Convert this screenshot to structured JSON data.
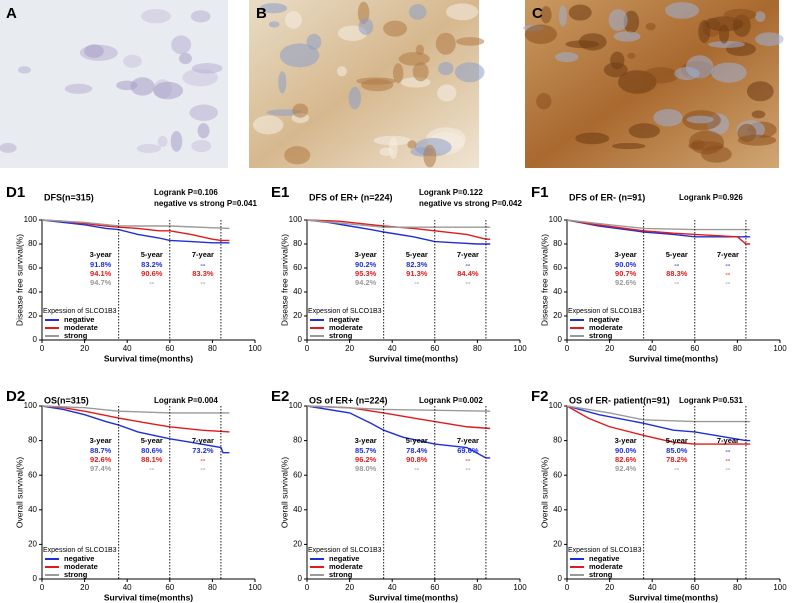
{
  "images": [
    {
      "label": "A"
    },
    {
      "label": "B"
    },
    {
      "label": "C"
    }
  ],
  "chart_data": [
    {
      "type": "line",
      "panel": "D1",
      "title": "DFS(n=315)",
      "logrank": "Logrank P=0.106",
      "logrank_note": "negative vs strong  P=0.041",
      "x_label": "Survival time(months)",
      "y_label": "Disease free survival(%)",
      "xlim": [
        0,
        100
      ],
      "xticks": [
        0,
        20,
        40,
        60,
        80,
        100
      ],
      "ylim": [
        0,
        100
      ],
      "yticks": [
        0,
        20,
        40,
        60,
        80,
        100
      ],
      "legend_title": "Expession of SLCO1B3",
      "series": [
        {
          "name": "negative",
          "color": "#1f2fd8",
          "x": [
            0,
            10,
            20,
            30,
            36,
            45,
            55,
            60,
            70,
            80,
            88
          ],
          "values": [
            100,
            98,
            96,
            93,
            92,
            88,
            85,
            83,
            82,
            81,
            81
          ]
        },
        {
          "name": "moderate",
          "color": "#e41a1a",
          "x": [
            0,
            10,
            20,
            30,
            36,
            45,
            55,
            60,
            70,
            80,
            84,
            88
          ],
          "values": [
            100,
            99,
            97,
            95,
            94,
            93,
            91,
            91,
            88,
            84,
            83,
            83
          ]
        },
        {
          "name": "strong",
          "color": "#9a9a9a",
          "x": [
            0,
            20,
            36,
            60,
            88
          ],
          "values": [
            100,
            98,
            95,
            95,
            93
          ]
        }
      ],
      "annotations": [
        {
          "label": "3-year",
          "x": 36,
          "rates": [
            "91.8%",
            "94.1%",
            "94.7%"
          ]
        },
        {
          "label": "5-year",
          "x": 60,
          "rates": [
            "83.2%",
            "90.6%",
            "--"
          ]
        },
        {
          "label": "7-year",
          "x": 84,
          "rates": [
            "--",
            "83.3%",
            "--"
          ]
        }
      ]
    },
    {
      "type": "line",
      "panel": "E1",
      "title": "DFS of ER+ (n=224)",
      "logrank": "Logrank P=0.122",
      "logrank_note": "negative vs strong  P=0.042",
      "x_label": "Survival time(months)",
      "y_label": "Disease free survival(%)",
      "xlim": [
        0,
        100
      ],
      "xticks": [
        0,
        20,
        40,
        60,
        80,
        100
      ],
      "ylim": [
        0,
        100
      ],
      "yticks": [
        0,
        20,
        40,
        60,
        80,
        100
      ],
      "legend_title": "Expession of SLCO1B3",
      "series": [
        {
          "name": "negative",
          "color": "#1f2fd8",
          "x": [
            0,
            10,
            20,
            30,
            36,
            50,
            60,
            70,
            80,
            86
          ],
          "values": [
            100,
            98,
            95,
            92,
            90,
            86,
            82,
            81,
            80,
            80
          ]
        },
        {
          "name": "moderate",
          "color": "#e41a1a",
          "x": [
            0,
            15,
            36,
            50,
            60,
            75,
            84,
            86
          ],
          "values": [
            100,
            99,
            95,
            93,
            91,
            88,
            84,
            84
          ]
        },
        {
          "name": "strong",
          "color": "#9a9a9a",
          "x": [
            0,
            36,
            60,
            86
          ],
          "values": [
            100,
            94,
            94,
            94
          ]
        }
      ],
      "annotations": [
        {
          "label": "3-year",
          "x": 36,
          "rates": [
            "90.2%",
            "95.3%",
            "94.2%"
          ]
        },
        {
          "label": "5-year",
          "x": 60,
          "rates": [
            "82.3%",
            "91.3%",
            "--"
          ]
        },
        {
          "label": "7-year",
          "x": 84,
          "rates": [
            "--",
            "84.4%",
            "--"
          ]
        }
      ]
    },
    {
      "type": "line",
      "panel": "F1",
      "title": "DFS of ER- (n=91)",
      "logrank": "Logrank P=0.926",
      "x_label": "Survival time(months)",
      "y_label": "Disease free survival(%)",
      "xlim": [
        0,
        100
      ],
      "xticks": [
        0,
        20,
        40,
        60,
        80,
        100
      ],
      "ylim": [
        0,
        100
      ],
      "yticks": [
        0,
        20,
        40,
        60,
        80,
        100
      ],
      "legend_title": "Expession of SLCO1B3",
      "series": [
        {
          "name": "negative",
          "color": "#1f2fd8",
          "x": [
            0,
            15,
            36,
            50,
            60,
            86
          ],
          "values": [
            100,
            95,
            90,
            88,
            86,
            86
          ]
        },
        {
          "name": "moderate",
          "color": "#e41a1a",
          "x": [
            0,
            10,
            36,
            50,
            60,
            80,
            84,
            86
          ],
          "values": [
            100,
            97,
            91,
            89,
            88,
            86,
            80,
            80
          ]
        },
        {
          "name": "strong",
          "color": "#9a9a9a",
          "x": [
            0,
            20,
            36,
            60,
            86
          ],
          "values": [
            100,
            96,
            93,
            92,
            92
          ]
        }
      ],
      "annotations": [
        {
          "label": "3-year",
          "x": 36,
          "rates": [
            "90.0%",
            "90.7%",
            "92.6%"
          ]
        },
        {
          "label": "5-year",
          "x": 60,
          "rates": [
            "--",
            "88.3%",
            "--"
          ]
        },
        {
          "label": "7-year",
          "x": 84,
          "rates": [
            "--",
            "--",
            "--"
          ]
        }
      ]
    },
    {
      "type": "line",
      "panel": "D2",
      "title": "OS(n=315)",
      "logrank": "Logrank P=0.004",
      "x_label": "Survival time(months)",
      "y_label": "Overall survival(%)",
      "xlim": [
        0,
        100
      ],
      "xticks": [
        0,
        20,
        40,
        60,
        80,
        100
      ],
      "ylim": [
        0,
        100
      ],
      "yticks": [
        0,
        20,
        40,
        60,
        80,
        100
      ],
      "legend_title": "Expession of SLCO1B3",
      "series": [
        {
          "name": "negative",
          "color": "#1f2fd8",
          "x": [
            0,
            10,
            20,
            30,
            36,
            45,
            60,
            70,
            84,
            85,
            88
          ],
          "values": [
            100,
            98,
            95,
            91,
            89,
            85,
            81,
            79,
            76,
            73,
            73
          ]
        },
        {
          "name": "moderate",
          "color": "#e41a1a",
          "x": [
            0,
            10,
            20,
            36,
            50,
            60,
            75,
            88
          ],
          "values": [
            100,
            99,
            97,
            93,
            90,
            88,
            86,
            85
          ]
        },
        {
          "name": "strong",
          "color": "#9a9a9a",
          "x": [
            0,
            20,
            36,
            60,
            88
          ],
          "values": [
            100,
            99,
            97,
            96,
            96
          ]
        }
      ],
      "annotations": [
        {
          "label": "3-year",
          "x": 36,
          "rates": [
            "88.7%",
            "92.6%",
            "97.4%"
          ]
        },
        {
          "label": "5-year",
          "x": 60,
          "rates": [
            "80.6%",
            "88.1%",
            "--"
          ]
        },
        {
          "label": "7-year",
          "x": 84,
          "rates": [
            "73.2%",
            "--",
            "--"
          ]
        }
      ]
    },
    {
      "type": "line",
      "panel": "E2",
      "title": "OS of ER+ (n=224)",
      "logrank": "Logrank P=0.002",
      "x_label": "Survival time(months)",
      "y_label": "Overall survival(%)",
      "xlim": [
        0,
        100
      ],
      "xticks": [
        0,
        20,
        40,
        60,
        80,
        100
      ],
      "ylim": [
        0,
        100
      ],
      "yticks": [
        0,
        20,
        40,
        60,
        80,
        100
      ],
      "legend_title": "Expession of SLCO1B3",
      "series": [
        {
          "name": "negative",
          "color": "#1f2fd8",
          "x": [
            0,
            20,
            30,
            36,
            45,
            60,
            75,
            84,
            86
          ],
          "values": [
            100,
            96,
            90,
            86,
            82,
            78,
            76,
            70,
            70
          ]
        },
        {
          "name": "moderate",
          "color": "#e41a1a",
          "x": [
            0,
            20,
            36,
            50,
            60,
            75,
            86
          ],
          "values": [
            100,
            99,
            96,
            93,
            91,
            88,
            87
          ]
        },
        {
          "name": "strong",
          "color": "#9a9a9a",
          "x": [
            0,
            36,
            86
          ],
          "values": [
            100,
            98,
            97
          ]
        }
      ],
      "annotations": [
        {
          "label": "3-year",
          "x": 36,
          "rates": [
            "85.7%",
            "96.2%",
            "98.0%"
          ]
        },
        {
          "label": "5-year",
          "x": 60,
          "rates": [
            "78.4%",
            "90.8%",
            "--"
          ]
        },
        {
          "label": "7-year",
          "x": 84,
          "rates": [
            "69.6%",
            "--",
            "--"
          ]
        }
      ]
    },
    {
      "type": "line",
      "panel": "F2",
      "title": "OS of ER- patient(n=91)",
      "logrank": "Logrank P=0.531",
      "x_label": "Survival time(months)",
      "y_label": "Overall survival(%)",
      "xlim": [
        0,
        100
      ],
      "xticks": [
        0,
        20,
        40,
        60,
        80,
        100
      ],
      "ylim": [
        0,
        100
      ],
      "yticks": [
        0,
        20,
        40,
        60,
        80,
        100
      ],
      "legend_title": "Expession of SLCO1B3",
      "series": [
        {
          "name": "negative",
          "color": "#1f2fd8",
          "x": [
            0,
            15,
            36,
            50,
            60,
            84,
            86
          ],
          "values": [
            100,
            95,
            90,
            86,
            85,
            80,
            80
          ]
        },
        {
          "name": "moderate",
          "color": "#e41a1a",
          "x": [
            0,
            10,
            20,
            36,
            50,
            60,
            86
          ],
          "values": [
            100,
            93,
            88,
            83,
            79,
            78,
            78
          ]
        },
        {
          "name": "strong",
          "color": "#9a9a9a",
          "x": [
            0,
            20,
            36,
            60,
            86
          ],
          "values": [
            100,
            96,
            92,
            91,
            91
          ]
        }
      ],
      "annotations": [
        {
          "label": "3-year",
          "x": 36,
          "rates": [
            "90.0%",
            "82.6%",
            "92.4%"
          ]
        },
        {
          "label": "5-year",
          "x": 60,
          "rates": [
            "85.0%",
            "78.2%",
            "--"
          ]
        },
        {
          "label": "7-year",
          "x": 84,
          "rates": [
            "--",
            "--",
            "--"
          ]
        }
      ]
    }
  ]
}
